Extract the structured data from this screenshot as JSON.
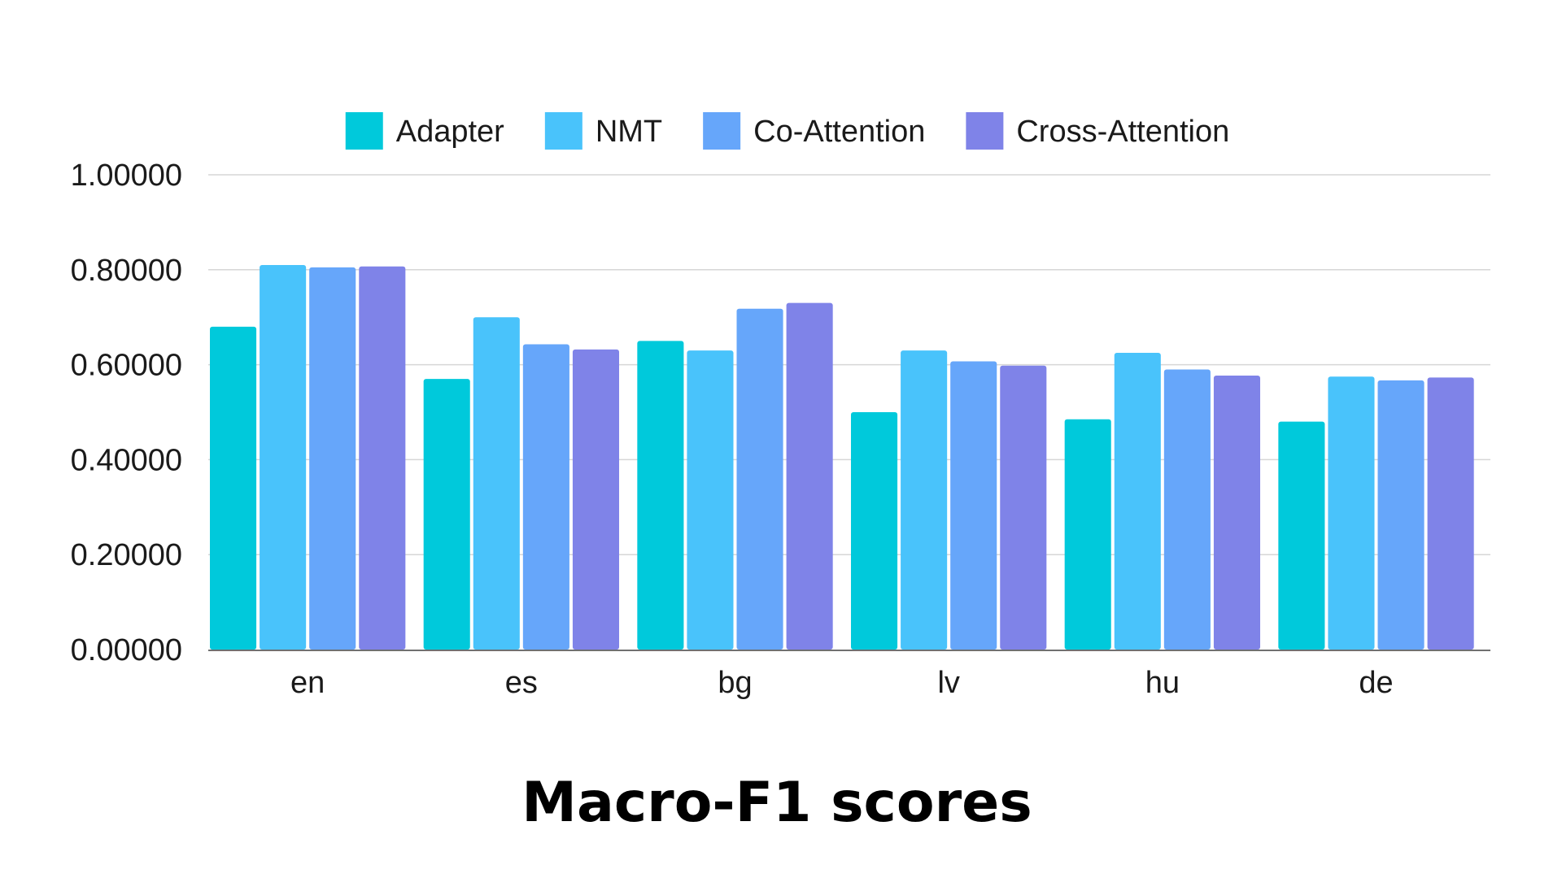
{
  "chart_data": {
    "type": "bar",
    "title": "Macro-F1 scores",
    "xlabel": "",
    "ylabel": "",
    "categories": [
      "en",
      "es",
      "bg",
      "lv",
      "hu",
      "de"
    ],
    "series": [
      {
        "name": "Adapter",
        "color": "#00c9db",
        "values": [
          0.68,
          0.57,
          0.65,
          0.5,
          0.485,
          0.48
        ]
      },
      {
        "name": "NMT",
        "color": "#49c3fb",
        "values": [
          0.81,
          0.7,
          0.63,
          0.63,
          0.625,
          0.575
        ]
      },
      {
        "name": "Co-Attention",
        "color": "#66a6fa",
        "values": [
          0.805,
          0.643,
          0.718,
          0.607,
          0.59,
          0.567
        ]
      },
      {
        "name": "Cross-Attention",
        "color": "#7f83e8",
        "values": [
          0.807,
          0.632,
          0.73,
          0.598,
          0.577,
          0.573
        ]
      }
    ],
    "ylim": [
      0,
      1
    ],
    "yticks": [
      {
        "value": 0,
        "label": "0.00000"
      },
      {
        "value": 0.2,
        "label": "0.20000"
      },
      {
        "value": 0.4,
        "label": "0.40000"
      },
      {
        "value": 0.6,
        "label": "0.60000"
      },
      {
        "value": 0.8,
        "label": "0.80000"
      },
      {
        "value": 1.0,
        "label": "1.00000"
      }
    ],
    "grid": true,
    "legend_position": "top-center",
    "colors": {
      "grid": "#d6d6d6",
      "axis": "#707070",
      "text": "#1a1a1a"
    }
  }
}
